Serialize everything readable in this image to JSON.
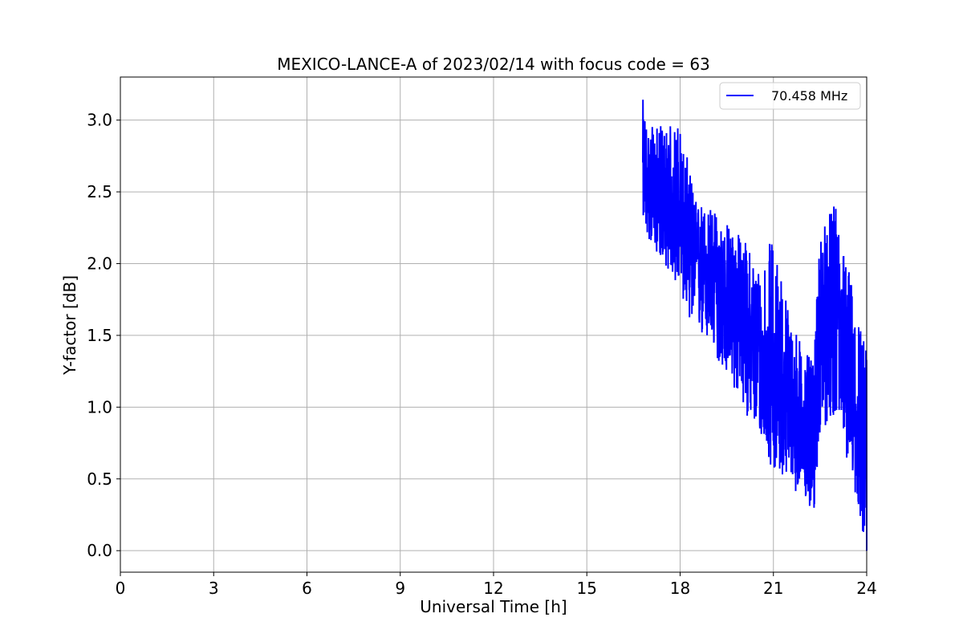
{
  "chart_data": {
    "type": "line",
    "title": "MEXICO-LANCE-A of 2023/02/14 with focus code = 63",
    "xlabel": "Universal Time [h]",
    "ylabel": "Y-factor [dB]",
    "xlim": [
      0,
      24
    ],
    "ylim": [
      -0.15,
      3.3
    ],
    "xticks": [
      0,
      3,
      6,
      9,
      12,
      15,
      18,
      21,
      24
    ],
    "yticks": [
      "0.0",
      "0.5",
      "1.0",
      "1.5",
      "2.0",
      "2.5",
      "3.0"
    ],
    "grid": true,
    "legend_position": "top-right",
    "series": [
      {
        "name": "70.458 MHz",
        "color": "#0000ff",
        "trend_x": [
          16.8,
          17.0,
          17.5,
          18.0,
          18.5,
          19.0,
          19.5,
          20.0,
          20.5,
          21.0,
          21.5,
          22.0,
          22.3,
          22.5,
          23.0,
          23.5,
          24.0
        ],
        "trend_y": [
          2.6,
          2.5,
          2.35,
          2.25,
          2.05,
          1.9,
          1.75,
          1.6,
          1.4,
          1.2,
          0.95,
          0.8,
          0.65,
          1.6,
          1.7,
          1.1,
          0.6
        ],
        "band_low": [
          2.3,
          2.15,
          2.0,
          1.8,
          1.5,
          1.4,
          1.2,
          1.0,
          0.8,
          0.55,
          0.5,
          0.3,
          0.25,
          0.8,
          0.95,
          0.5,
          0.0
        ],
        "band_high": [
          3.15,
          2.95,
          2.97,
          2.98,
          2.45,
          2.4,
          2.3,
          2.2,
          2.0,
          2.2,
          1.7,
          1.4,
          1.3,
          2.25,
          2.42,
          1.9,
          1.4
        ]
      }
    ]
  }
}
